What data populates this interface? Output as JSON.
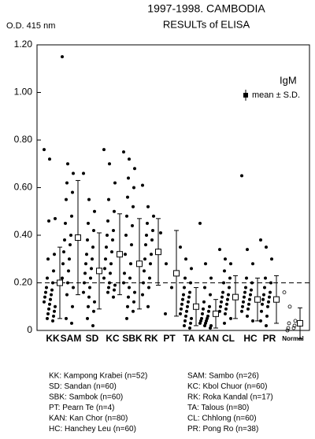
{
  "chart_data": {
    "type": "dot",
    "title": "1997-1998. CAMBODIA",
    "subtitle": "RESULTs of ELISA",
    "y_label": "O.D. 415 nm",
    "annotation": "IgM",
    "legend_label": "mean ± S.D.",
    "categories": [
      "KK",
      "SAM",
      "SD",
      "KC",
      "SBK",
      "RK",
      "PT",
      "TA",
      "KAN",
      "CL",
      "HC",
      "PR",
      "Normal"
    ],
    "points": [
      [
        0.76,
        0.72,
        0.47,
        0.46,
        0.32,
        0.3,
        0.25,
        0.22,
        0.2,
        0.18,
        0.17,
        0.16,
        0.15,
        0.14,
        0.13,
        0.12,
        0.11,
        0.1,
        0.09,
        0.08,
        0.07,
        0.06,
        0.05,
        0.04
      ],
      [
        1.15,
        0.7,
        0.66,
        0.62,
        0.58,
        0.55,
        0.48,
        0.45,
        0.4,
        0.38,
        0.36,
        0.33,
        0.3,
        0.28,
        0.25,
        0.22,
        0.2,
        0.18,
        0.15,
        0.1,
        0.05,
        0.03
      ],
      [
        0.66,
        0.55,
        0.5,
        0.45,
        0.42,
        0.38,
        0.35,
        0.32,
        0.3,
        0.28,
        0.26,
        0.24,
        0.22,
        0.2,
        0.18,
        0.16,
        0.14,
        0.12,
        0.1,
        0.08,
        0.05,
        0.02
      ],
      [
        0.76,
        0.7,
        0.62,
        0.55,
        0.5,
        0.46,
        0.42,
        0.4,
        0.38,
        0.35,
        0.33,
        0.3,
        0.28,
        0.26,
        0.24,
        0.22,
        0.2,
        0.19,
        0.18,
        0.17,
        0.16,
        0.14
      ],
      [
        0.75,
        0.72,
        0.68,
        0.64,
        0.6,
        0.56,
        0.52,
        0.48,
        0.44,
        0.4,
        0.36,
        0.32,
        0.28,
        0.24,
        0.22,
        0.2,
        0.18,
        0.16,
        0.14,
        0.12,
        0.1,
        0.08,
        0.05
      ],
      [
        0.61,
        0.52,
        0.48,
        0.45,
        0.42,
        0.4,
        0.38,
        0.36,
        0.32,
        0.3,
        0.28,
        0.25,
        0.22,
        0.2,
        0.18,
        0.15,
        0.1
      ],
      [
        0.41,
        0.28,
        0.18,
        0.07
      ],
      [
        0.35,
        0.3,
        0.26,
        0.22,
        0.2,
        0.18,
        0.16,
        0.15,
        0.14,
        0.13,
        0.12,
        0.11,
        0.1,
        0.09,
        0.08,
        0.07,
        0.06,
        0.05,
        0.04,
        0.03,
        0.02,
        0.01
      ],
      [
        0.45,
        0.28,
        0.22,
        0.18,
        0.15,
        0.12,
        0.1,
        0.09,
        0.08,
        0.07,
        0.06,
        0.05,
        0.05,
        0.04,
        0.04,
        0.03,
        0.03,
        0.02,
        0.02,
        0.01
      ],
      [
        0.34,
        0.3,
        0.28,
        0.25,
        0.22,
        0.2,
        0.18,
        0.16,
        0.15,
        0.14,
        0.13,
        0.12,
        0.11,
        0.1,
        0.09,
        0.08,
        0.07,
        0.05,
        0.03
      ],
      [
        0.65,
        0.34,
        0.28,
        0.22,
        0.2,
        0.18,
        0.17,
        0.16,
        0.15,
        0.14,
        0.13,
        0.12,
        0.11,
        0.1,
        0.09,
        0.08,
        0.06,
        0.04
      ],
      [
        0.38,
        0.35,
        0.3,
        0.22,
        0.2,
        0.18,
        0.16,
        0.15,
        0.14,
        0.13,
        0.12,
        0.11,
        0.1,
        0.08,
        0.06,
        0.04,
        0.02
      ],
      [
        0.16,
        0.1,
        0.04,
        0.03,
        0.02,
        0.01,
        0.01,
        0.0
      ]
    ],
    "marker_fill": [
      "#000",
      "#000",
      "#000",
      "#000",
      "#000",
      "#000",
      "#000",
      "#000",
      "#000",
      "#000",
      "#000",
      "#000",
      "none"
    ],
    "means": [
      0.2,
      0.39,
      0.25,
      0.32,
      0.28,
      0.33,
      0.24,
      0.1,
      0.07,
      0.14,
      0.13,
      0.13,
      0.03
    ],
    "sds": [
      0.15,
      0.24,
      0.16,
      0.17,
      0.19,
      0.14,
      0.18,
      0.08,
      0.06,
      0.09,
      0.09,
      0.1,
      0.065
    ],
    "cutoff": 0.2,
    "ylim": [
      0,
      1.2
    ],
    "yticks": [
      0,
      {
        "value": 0.2,
        "label": "0.20"
      },
      {
        "value": 0.4,
        "label": "0.40"
      },
      {
        "value": 0.6,
        "label": "0.60"
      },
      {
        "value": 0.8,
        "label": "0.80"
      },
      {
        "value": 1.0,
        "label": "1.00"
      },
      {
        "value": 1.2,
        "label": "1.20"
      }
    ],
    "key": [
      "KK: Kampong Krabei (n=52)",
      "SAM: Sambo (n=26)",
      "SD: Sandan (n=60)",
      "KC: Kbol Chuor (n=60)",
      "SBK: Sambok (n=60)",
      "RK: Roka Kandal (n=17)",
      "PT: Pearn Te (n=4)",
      "TA: Talous (n=80)",
      "KAN: Kan Chor (n=80)",
      "CL: Chhlong (n=60)",
      "HC: Hanchey Leu (n=60)",
      "PR: Pong Ro (n=38)"
    ]
  }
}
